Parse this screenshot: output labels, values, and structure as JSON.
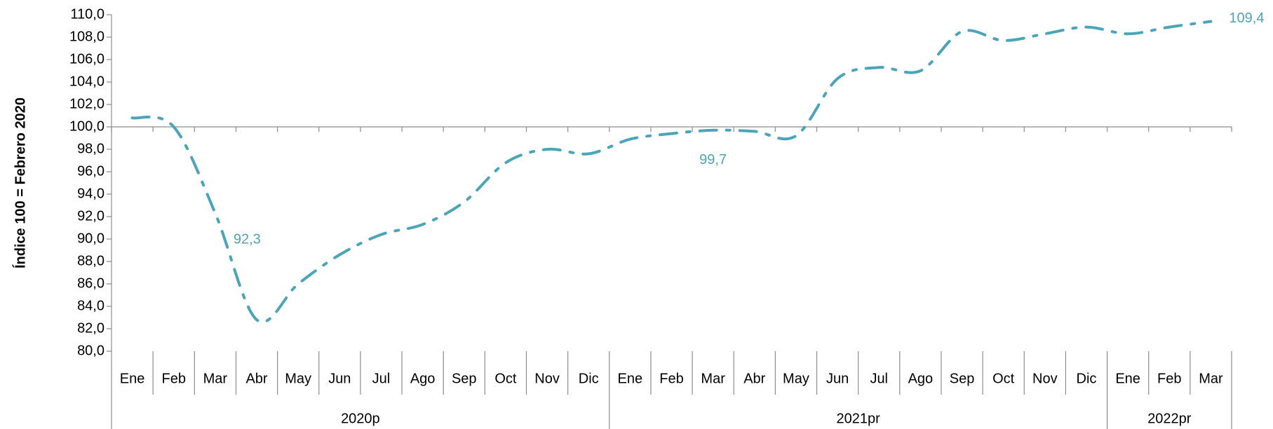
{
  "chart_data": {
    "type": "line",
    "y_axis_label": "Índice 100 = Febrero 2020",
    "categories": [
      "Ene",
      "Feb",
      "Mar",
      "Abr",
      "May",
      "Jun",
      "Jul",
      "Ago",
      "Sep",
      "Oct",
      "Nov",
      "Dic",
      "Ene",
      "Feb",
      "Mar",
      "Abr",
      "May",
      "Jun",
      "Jul",
      "Ago",
      "Sep",
      "Oct",
      "Nov",
      "Dic",
      "Ene",
      "Feb",
      "Mar"
    ],
    "year_groups": [
      {
        "name": "2020p",
        "months": 12
      },
      {
        "name": "2021pr",
        "months": 12
      },
      {
        "name": "2022pr",
        "months": 3
      }
    ],
    "series": [
      {
        "color": "#4ba5b9",
        "values": [
          100.8,
          100.0,
          92.3,
          82.8,
          86.0,
          88.6,
          90.4,
          91.3,
          93.3,
          96.8,
          98.0,
          97.6,
          98.9,
          99.4,
          99.7,
          99.6,
          99.2,
          104.3,
          105.3,
          105.0,
          108.5,
          107.7,
          108.3,
          108.9,
          108.3,
          108.9,
          109.4
        ],
        "value_labels": [
          null,
          null,
          "92,3",
          null,
          null,
          null,
          null,
          null,
          null,
          null,
          null,
          null,
          null,
          null,
          "99,7",
          null,
          null,
          null,
          null,
          null,
          null,
          null,
          null,
          null,
          null,
          null,
          "109,4"
        ]
      }
    ],
    "ylim": [
      80,
      110
    ],
    "x_axis_crosses": 100,
    "yticks": [
      {
        "value": 80,
        "label": "80,0"
      },
      {
        "value": 82,
        "label": "82,0"
      },
      {
        "value": 84,
        "label": "84,0"
      },
      {
        "value": 86,
        "label": "86,0"
      },
      {
        "value": 88,
        "label": "88,0"
      },
      {
        "value": 90,
        "label": "90,0"
      },
      {
        "value": 92,
        "label": "92,0"
      },
      {
        "value": 94,
        "label": "94,0"
      },
      {
        "value": 96,
        "label": "96,0"
      },
      {
        "value": 98,
        "label": "98,0"
      },
      {
        "value": 100,
        "label": "100,0"
      },
      {
        "value": 102,
        "label": "102,0"
      },
      {
        "value": 104,
        "label": "104,0"
      },
      {
        "value": 106,
        "label": "106,0"
      },
      {
        "value": 108,
        "label": "108,0"
      },
      {
        "value": 110,
        "label": "110,0"
      }
    ]
  }
}
